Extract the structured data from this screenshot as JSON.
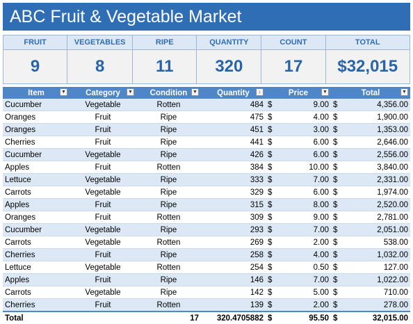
{
  "title": "ABC Fruit & Vegetable Market",
  "kpis": [
    {
      "label": "FRUIT",
      "value": "9"
    },
    {
      "label": "VEGETABLES",
      "value": "8"
    },
    {
      "label": "RIPE",
      "value": "11"
    },
    {
      "label": "QUANTITY",
      "value": "320"
    },
    {
      "label": "COUNT",
      "value": "17"
    },
    {
      "label": "TOTAL",
      "value": "$32,015"
    }
  ],
  "table": {
    "columns": [
      "Item",
      "Category",
      "Condition",
      "Quantity",
      "Price",
      "Total"
    ],
    "sorted_column": "Quantity",
    "currency_symbol": "$",
    "rows": [
      {
        "item": "Cucumber",
        "category": "Vegetable",
        "condition": "Rotten",
        "quantity": "484",
        "price": "9.00",
        "total": "4,356.00"
      },
      {
        "item": "Oranges",
        "category": "Fruit",
        "condition": "Ripe",
        "quantity": "475",
        "price": "4.00",
        "total": "1,900.00"
      },
      {
        "item": "Oranges",
        "category": "Fruit",
        "condition": "Ripe",
        "quantity": "451",
        "price": "3.00",
        "total": "1,353.00"
      },
      {
        "item": "Cherries",
        "category": "Fruit",
        "condition": "Ripe",
        "quantity": "441",
        "price": "6.00",
        "total": "2,646.00"
      },
      {
        "item": "Cucumber",
        "category": "Vegetable",
        "condition": "Ripe",
        "quantity": "426",
        "price": "6.00",
        "total": "2,556.00"
      },
      {
        "item": "Apples",
        "category": "Fruit",
        "condition": "Rotten",
        "quantity": "384",
        "price": "10.00",
        "total": "3,840.00"
      },
      {
        "item": "Lettuce",
        "category": "Vegetable",
        "condition": "Ripe",
        "quantity": "333",
        "price": "7.00",
        "total": "2,331.00"
      },
      {
        "item": "Carrots",
        "category": "Vegetable",
        "condition": "Ripe",
        "quantity": "329",
        "price": "6.00",
        "total": "1,974.00"
      },
      {
        "item": "Apples",
        "category": "Fruit",
        "condition": "Ripe",
        "quantity": "315",
        "price": "8.00",
        "total": "2,520.00"
      },
      {
        "item": "Oranges",
        "category": "Fruit",
        "condition": "Rotten",
        "quantity": "309",
        "price": "9.00",
        "total": "2,781.00"
      },
      {
        "item": "Cucumber",
        "category": "Vegetable",
        "condition": "Ripe",
        "quantity": "293",
        "price": "7.00",
        "total": "2,051.00"
      },
      {
        "item": "Carrots",
        "category": "Vegetable",
        "condition": "Rotten",
        "quantity": "269",
        "price": "2.00",
        "total": "538.00"
      },
      {
        "item": "Cherries",
        "category": "Fruit",
        "condition": "Ripe",
        "quantity": "258",
        "price": "4.00",
        "total": "1,032.00"
      },
      {
        "item": "Lettuce",
        "category": "Vegetable",
        "condition": "Rotten",
        "quantity": "254",
        "price": "0.50",
        "total": "127.00"
      },
      {
        "item": "Apples",
        "category": "Fruit",
        "condition": "Ripe",
        "quantity": "146",
        "price": "7.00",
        "total": "1,022.00"
      },
      {
        "item": "Carrots",
        "category": "Vegetable",
        "condition": "Ripe",
        "quantity": "142",
        "price": "5.00",
        "total": "710.00"
      },
      {
        "item": "Cherries",
        "category": "Fruit",
        "condition": "Rotten",
        "quantity": "139",
        "price": "2.00",
        "total": "278.00"
      }
    ],
    "totals": {
      "label": "Total",
      "condition": "17",
      "quantity": "320.4705882",
      "price": "95.50",
      "total": "32,015.00"
    }
  },
  "icons": {
    "filter": "filter-dropdown-icon",
    "sort": "sort-descending-icon"
  },
  "colors": {
    "accent": "#2f6eb5",
    "header": "#4e86c8",
    "band": "#dce8f5",
    "kpi_value": "#2a64a8"
  }
}
